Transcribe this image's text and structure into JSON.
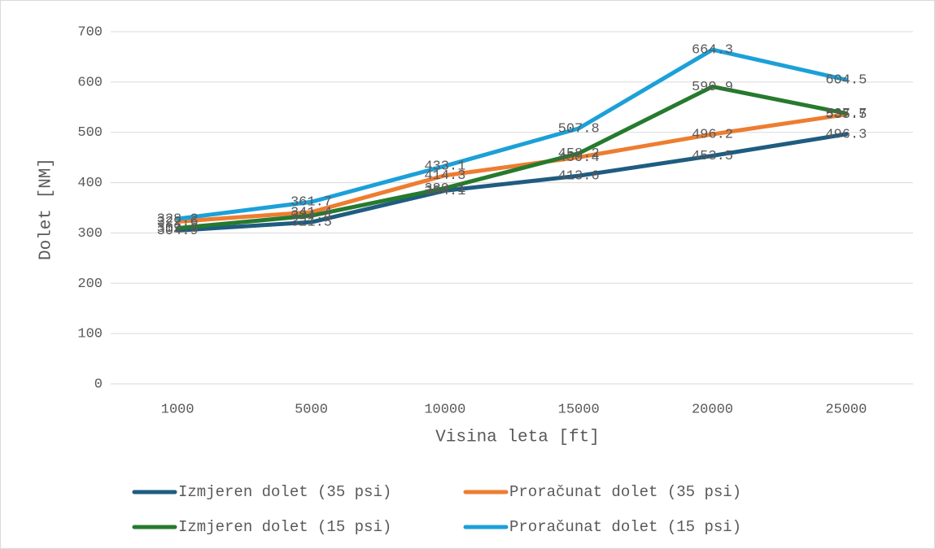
{
  "chart_data": {
    "type": "line",
    "x_label": "Visina leta [ft]",
    "y_label": "Dolet [NM]",
    "categories": [
      "1000",
      "5000",
      "10000",
      "15000",
      "20000",
      "25000"
    ],
    "series": [
      {
        "name": "Izmjeren dolet (35 psi)",
        "color": "#1f5c80",
        "values": [
          304.9,
          321.5,
          384.1,
          413.6,
          453.5,
          496.3
        ]
      },
      {
        "name": "Proračunat dolet (35 psi)",
        "color": "#ed7d31",
        "values": [
          322.6,
          341.4,
          414.3,
          450.4,
          496.2,
          535.5
        ]
      },
      {
        "name": "Izmjeren dolet (15 psi)",
        "color": "#267a2e",
        "values": [
          309.6,
          334.4,
          389.1,
          458.2,
          590.9,
          537.7
        ]
      },
      {
        "name": "Proračunat dolet (15 psi)",
        "color": "#1ca0d8",
        "values": [
          328.2,
          361.7,
          433.1,
          507.8,
          664.3,
          604.5
        ]
      }
    ],
    "ylim": [
      0,
      700
    ],
    "yticks": [
      0,
      100,
      200,
      300,
      400,
      500,
      600,
      700
    ],
    "grid": true,
    "legend": "bottom"
  }
}
